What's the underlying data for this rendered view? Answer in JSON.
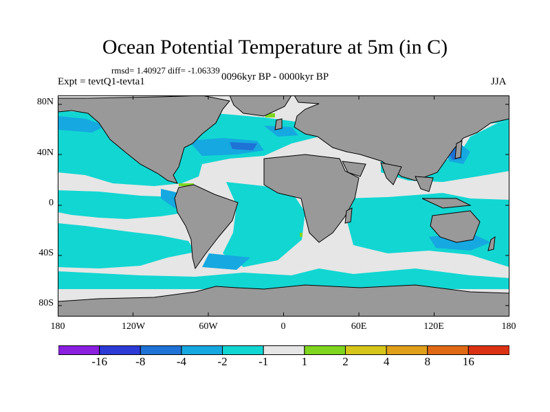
{
  "title": "Ocean Potential Temperature at 5m (in C)",
  "stats": "rmsd= 1.40927 diff= -1.06339",
  "expt": "Expt = tevtQ1-tevta1",
  "period": "0096kyr BP - 0000kyr BP",
  "season": "JJA",
  "lat_ticks": [
    "80N",
    "40N",
    "0",
    "40S",
    "80S"
  ],
  "lon_ticks": [
    "180",
    "120W",
    "60W",
    "0",
    "60E",
    "120E",
    "180"
  ],
  "colorbar": {
    "labels": [
      "-16",
      "-8",
      "-4",
      "-2",
      "-1",
      "1",
      "2",
      "4",
      "8",
      "16"
    ],
    "colors": [
      "#8a1fe0",
      "#2c3ad6",
      "#1f72d6",
      "#16a8e0",
      "#12d6d2",
      "#e6e6e6",
      "#7fd51f",
      "#d6c61a",
      "#e0a01a",
      "#e06a14",
      "#dc3214"
    ]
  },
  "colors": {
    "land": "#999999",
    "ocean_small_anomaly": "#e6e6e6",
    "cool_anomaly": "#12d6d2",
    "strong_cool_anomaly": "#16a8e0",
    "warm_anomaly": "#7fd51f"
  }
}
